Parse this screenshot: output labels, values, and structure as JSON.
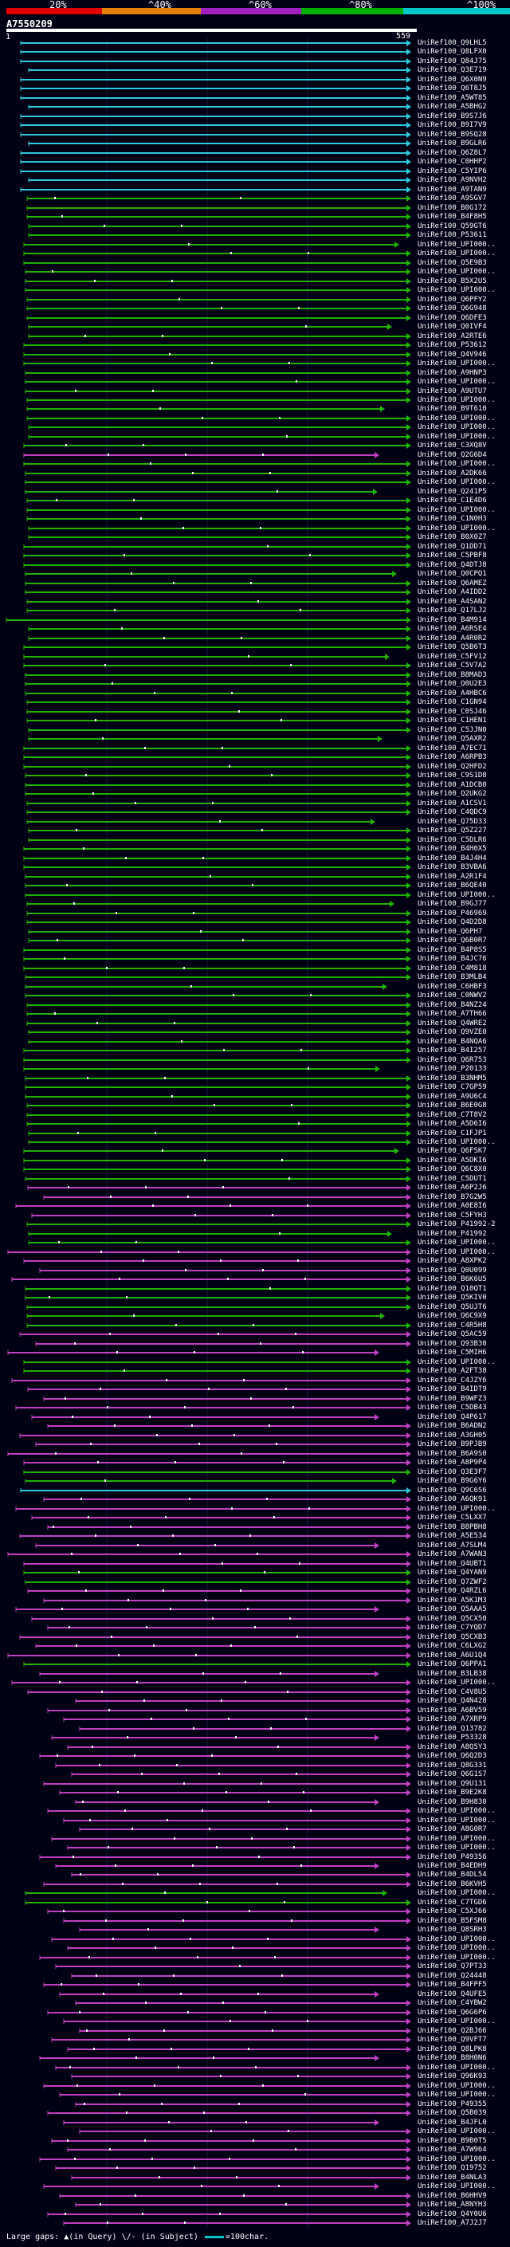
{
  "scale": {
    "labels": [
      "20%",
      "^40%",
      "^60%",
      "^80%",
      "^100%"
    ],
    "colors": [
      "#e00000",
      "#e08000",
      "#a020c0",
      "#00b000",
      "#00c8c8"
    ]
  },
  "query": {
    "id": "A7550209",
    "start": "1",
    "end": "559"
  },
  "colors": {
    "pct100": "#30c8dc",
    "pct80": "#20b000",
    "pct60": "#c040c0",
    "gap": "#ffffff",
    "bg": "#000015"
  },
  "hits": [
    {
      "label": "UniRef100_Q9LHL5",
      "pct": 100
    },
    {
      "label": "UniRef100_Q8LFX0",
      "pct": 100
    },
    {
      "label": "UniRef100_Q84J75",
      "pct": 100
    },
    {
      "label": "UniRef100_Q3E719",
      "pct": 100
    },
    {
      "label": "UniRef100_Q6X0N9",
      "pct": 100
    },
    {
      "label": "UniRef100_Q6T8J5",
      "pct": 100
    },
    {
      "label": "UniRef100_A5WT85",
      "pct": 100
    },
    {
      "label": "UniRef100_A5BHG2",
      "pct": 100
    },
    {
      "label": "UniRef100_B9S7J6",
      "pct": 100
    },
    {
      "label": "UniRef100_B9I7V9",
      "pct": 100
    },
    {
      "label": "UniRef100_B9SQ28",
      "pct": 100
    },
    {
      "label": "UniRef100_B9GLR6",
      "pct": 100
    },
    {
      "label": "UniRef100_Q6Z8L7",
      "pct": 100
    },
    {
      "label": "UniRef100_C0HHP2",
      "pct": 100
    },
    {
      "label": "UniRef100_C5YIP6",
      "pct": 100
    },
    {
      "label": "UniRef100_A9NVH2",
      "pct": 100
    },
    {
      "label": "UniRef100_A9TAN9",
      "pct": 100
    },
    {
      "label": "UniRef100_A9SGV7",
      "pct": 80
    },
    {
      "label": "UniRef100_B0G172",
      "pct": 80
    },
    {
      "label": "UniRef100_B4F8H5",
      "pct": 80
    },
    {
      "label": "UniRef100_Q59GT6",
      "pct": 80
    },
    {
      "label": "UniRef100_P53611",
      "pct": 80
    },
    {
      "label": "UniRef100_UPI000..",
      "pct": 80
    },
    {
      "label": "UniRef100_UPI000..",
      "pct": 80
    },
    {
      "label": "UniRef100_Q5E9B3",
      "pct": 80
    },
    {
      "label": "UniRef100_UPI000..",
      "pct": 80
    },
    {
      "label": "UniRef100_B5X2U5",
      "pct": 80
    },
    {
      "label": "UniRef100_UPI000..",
      "pct": 80
    },
    {
      "label": "UniRef100_Q6PFY2",
      "pct": 80
    },
    {
      "label": "UniRef100_Q6G948",
      "pct": 80
    },
    {
      "label": "UniRef100_Q6DFE3",
      "pct": 80
    },
    {
      "label": "UniRef100_Q0IVF4",
      "pct": 80
    },
    {
      "label": "UniRef100_A2RTE6",
      "pct": 80
    },
    {
      "label": "UniRef100_P53612",
      "pct": 80
    },
    {
      "label": "UniRef100_Q4V946",
      "pct": 80
    },
    {
      "label": "UniRef100_UPI000..",
      "pct": 80
    },
    {
      "label": "UniRef100_A9HNP3",
      "pct": 80
    },
    {
      "label": "UniRef100_UPI000..",
      "pct": 80
    },
    {
      "label": "UniRef100_A9UTU7",
      "pct": 80
    },
    {
      "label": "UniRef100_UPI000..",
      "pct": 80
    },
    {
      "label": "UniRef100_B9T610",
      "pct": 80
    },
    {
      "label": "UniRef100_UPI000..",
      "pct": 80
    },
    {
      "label": "UniRef100_UPI000..",
      "pct": 80
    },
    {
      "label": "UniRef100_UPI000..",
      "pct": 80
    },
    {
      "label": "UniRef100_C3XQ8V",
      "pct": 80
    },
    {
      "label": "UniRef100_Q2G6D4",
      "pct": 60
    },
    {
      "label": "UniRef100_UPI000..",
      "pct": 80
    },
    {
      "label": "UniRef100_A2DK66",
      "pct": 80
    },
    {
      "label": "UniRef100_UPI000..",
      "pct": 80
    },
    {
      "label": "UniRef100_Q241P5",
      "pct": 80
    },
    {
      "label": "UniRef100_C1E4D6",
      "pct": 80
    },
    {
      "label": "UniRef100_UPI000..",
      "pct": 80
    },
    {
      "label": "UniRef100_C1N0H3",
      "pct": 80
    },
    {
      "label": "UniRef100_UPI000..",
      "pct": 80
    },
    {
      "label": "UniRef100_B0X0Z7",
      "pct": 80
    },
    {
      "label": "UniRef100_Q1DD71",
      "pct": 80
    },
    {
      "label": "UniRef100_C5PBF8",
      "pct": 80
    },
    {
      "label": "UniRef100_Q4DTJ8",
      "pct": 80
    },
    {
      "label": "UniRef100_Q0CPQ1",
      "pct": 80
    },
    {
      "label": "UniRef100_Q6AMEZ",
      "pct": 80
    },
    {
      "label": "UniRef100_A4IDD2",
      "pct": 80
    },
    {
      "label": "UniRef100_A4SAN2",
      "pct": 80
    },
    {
      "label": "UniRef100_Q17LJ2",
      "pct": 80
    },
    {
      "label": "UniRef100_B4M914",
      "pct": 80
    },
    {
      "label": "UniRef100_A6RSE4",
      "pct": 80
    },
    {
      "label": "UniRef100_A4R0R2",
      "pct": 80
    },
    {
      "label": "UniRef100_Q5B6T3",
      "pct": 80
    },
    {
      "label": "UniRef100_C5FV12",
      "pct": 80
    },
    {
      "label": "UniRef100_C5V7A2",
      "pct": 80
    },
    {
      "label": "UniRef100_B8MAD3",
      "pct": 80
    },
    {
      "label": "UniRef100_Q0U2E3",
      "pct": 80
    },
    {
      "label": "UniRef100_A4HBC6",
      "pct": 80
    },
    {
      "label": "UniRef100_C1GN94",
      "pct": 80
    },
    {
      "label": "UniRef100_C0SJ46",
      "pct": 80
    },
    {
      "label": "UniRef100_C1HEN1",
      "pct": 80
    },
    {
      "label": "UniRef100_C5JJN0",
      "pct": 80
    },
    {
      "label": "UniRef100_Q5AXR2",
      "pct": 80
    },
    {
      "label": "UniRef100_A7EC71",
      "pct": 80
    },
    {
      "label": "UniRef100_A6RPB3",
      "pct": 80
    },
    {
      "label": "UniRef100_Q2HFD2",
      "pct": 80
    },
    {
      "label": "UniRef100_C9S1D8",
      "pct": 80
    },
    {
      "label": "UniRef100_A1DCB0",
      "pct": 80
    },
    {
      "label": "UniRef100_Q2UKG2",
      "pct": 80
    },
    {
      "label": "UniRef100_A1CSV1",
      "pct": 80
    },
    {
      "label": "UniRef100_C4QDC9",
      "pct": 80
    },
    {
      "label": "UniRef100_Q75D33",
      "pct": 80
    },
    {
      "label": "UniRef100_Q5Z227",
      "pct": 80
    },
    {
      "label": "UniRef100_C5DLR6",
      "pct": 80
    },
    {
      "label": "UniRef100_B4H0X5",
      "pct": 80
    },
    {
      "label": "UniRef100_B4J4H4",
      "pct": 80
    },
    {
      "label": "UniRef100_B3VBA6",
      "pct": 80
    },
    {
      "label": "UniRef100_A2R1F4",
      "pct": 80
    },
    {
      "label": "UniRef100_B6QE40",
      "pct": 80
    },
    {
      "label": "UniRef100_UPI000..",
      "pct": 80
    },
    {
      "label": "UniRef100_B9GJ77",
      "pct": 80
    },
    {
      "label": "UniRef100_P46969",
      "pct": 80
    },
    {
      "label": "UniRef100_Q4D2D8",
      "pct": 80
    },
    {
      "label": "UniRef100_Q6PH7",
      "pct": 80
    },
    {
      "label": "UniRef100_Q6B0R7",
      "pct": 80
    },
    {
      "label": "UniRef100_B4P8S5",
      "pct": 80
    },
    {
      "label": "UniRef100_B4JC76",
      "pct": 80
    },
    {
      "label": "UniRef100_C4M818",
      "pct": 80
    },
    {
      "label": "UniRef100_B3MLB4",
      "pct": 80
    },
    {
      "label": "UniRef100_C6HBF3",
      "pct": 80
    },
    {
      "label": "UniRef100_C0NWV2",
      "pct": 80
    },
    {
      "label": "UniRef100_B4NZ24",
      "pct": 80
    },
    {
      "label": "UniRef100_A7TH66",
      "pct": 80
    },
    {
      "label": "UniRef100_Q4WRE2",
      "pct": 80
    },
    {
      "label": "UniRef100_Q9VZE0",
      "pct": 80
    },
    {
      "label": "UniRef100_B4NQA6",
      "pct": 80
    },
    {
      "label": "UniRef100_B4I257",
      "pct": 80
    },
    {
      "label": "UniRef100_Q6R753",
      "pct": 80
    },
    {
      "label": "UniRef100_P20133",
      "pct": 80
    },
    {
      "label": "UniRef100_B3NHM5",
      "pct": 80
    },
    {
      "label": "UniRef100_C7GP59",
      "pct": 80
    },
    {
      "label": "UniRef100_A9U6C4",
      "pct": 80
    },
    {
      "label": "UniRef100_B6E0G8",
      "pct": 80
    },
    {
      "label": "UniRef100_C7T8V2",
      "pct": 80
    },
    {
      "label": "UniRef100_A5D6I6",
      "pct": 80
    },
    {
      "label": "UniRef100_C1FJP1",
      "pct": 80
    },
    {
      "label": "UniRef100_UPI000..",
      "pct": 80
    },
    {
      "label": "UniRef100_Q6FSK7",
      "pct": 80
    },
    {
      "label": "UniRef100_A5DKI6",
      "pct": 80
    },
    {
      "label": "UniRef100_Q6C8X0",
      "pct": 80
    },
    {
      "label": "UniRef100_C5DUT1",
      "pct": 80
    },
    {
      "label": "UniRef100_A6P2J6",
      "pct": 60
    },
    {
      "label": "UniRef100_B7G2W5",
      "pct": 60
    },
    {
      "label": "UniRef100_A0E8I6",
      "pct": 60
    },
    {
      "label": "UniRef100_C5FYH3",
      "pct": 60
    },
    {
      "label": "UniRef100_P41992-2",
      "pct": 80
    },
    {
      "label": "UniRef100_P41992",
      "pct": 80
    },
    {
      "label": "UniRef100_UPI000..",
      "pct": 80
    },
    {
      "label": "UniRef100_UPI000..",
      "pct": 60
    },
    {
      "label": "UniRef100_A8XPK2",
      "pct": 60
    },
    {
      "label": "UniRef100_Q0U099",
      "pct": 60
    },
    {
      "label": "UniRef100_B6K6U5",
      "pct": 60
    },
    {
      "label": "UniRef100_Q10QT1",
      "pct": 80
    },
    {
      "label": "UniRef100_Q5KIV0",
      "pct": 80
    },
    {
      "label": "UniRef100_Q5UJT6",
      "pct": 80
    },
    {
      "label": "UniRef100_Q6C9X9",
      "pct": 80
    },
    {
      "label": "UniRef100_C4R5H8",
      "pct": 80
    },
    {
      "label": "UniRef100_Q5AC59",
      "pct": 60
    },
    {
      "label": "UniRef100_Q93B30",
      "pct": 60
    },
    {
      "label": "UniRef100_C5MIH6",
      "pct": 60
    },
    {
      "label": "UniRef100_UPI000..",
      "pct": 80
    },
    {
      "label": "UniRef100_A2FT38",
      "pct": 80
    },
    {
      "label": "UniRef100_C4JZY6",
      "pct": 60
    },
    {
      "label": "UniRef100_B4IDT9",
      "pct": 60
    },
    {
      "label": "UniRef100_B9WFZ3",
      "pct": 60
    },
    {
      "label": "UniRef100_C5DB43",
      "pct": 60
    },
    {
      "label": "UniRef100_Q4P617",
      "pct": 60
    },
    {
      "label": "UniRef100_B6ADN2",
      "pct": 60
    },
    {
      "label": "UniRef100_A3GH05",
      "pct": 60
    },
    {
      "label": "UniRef100_B9PJB9",
      "pct": 60
    },
    {
      "label": "UniRef100_B6A9S0",
      "pct": 60
    },
    {
      "label": "UniRef100_A8P9P4",
      "pct": 60
    },
    {
      "label": "UniRef100_Q3E3F7",
      "pct": 80
    },
    {
      "label": "UniRef100_B9G6Y6",
      "pct": 80
    },
    {
      "label": "UniRef100_Q9C6S6",
      "pct": 100
    },
    {
      "label": "UniRef100_A6QK91",
      "pct": 60
    },
    {
      "label": "UniRef100_UPI000..",
      "pct": 60
    },
    {
      "label": "UniRef100_C5LXX7",
      "pct": 60
    },
    {
      "label": "UniRef100_B8PBH8",
      "pct": 60
    },
    {
      "label": "UniRef100_A5E534",
      "pct": 60
    },
    {
      "label": "UniRef100_A7SLM4",
      "pct": 60
    },
    {
      "label": "UniRef100_A7WAN3",
      "pct": 60
    },
    {
      "label": "UniRef100_Q4UBT1",
      "pct": 60
    },
    {
      "label": "UniRef100_Q4YAN9",
      "pct": 80
    },
    {
      "label": "UniRef100_Q7ZWF2",
      "pct": 80
    },
    {
      "label": "UniRef100_Q4RZL6",
      "pct": 60
    },
    {
      "label": "UniRef100_A5K1M3",
      "pct": 60
    },
    {
      "label": "UniRef100_Q5AAA5",
      "pct": 60
    },
    {
      "label": "UniRef100_Q5CX50",
      "pct": 60
    },
    {
      "label": "UniRef100_C7YQD7",
      "pct": 60
    },
    {
      "label": "UniRef100_Q5CXB3",
      "pct": 60
    },
    {
      "label": "UniRef100_C6LXG2",
      "pct": 60
    },
    {
      "label": "UniRef100_A6U1Q4",
      "pct": 60
    },
    {
      "label": "UniRef100_Q6PPA1",
      "pct": 80
    },
    {
      "label": "UniRef100_B3LB38",
      "pct": 60
    },
    {
      "label": "UniRef100_UPI000..",
      "pct": 60
    },
    {
      "label": "UniRef100_C4V8U5",
      "pct": 60
    },
    {
      "label": "UniRef100_Q4N428",
      "pct": 60
    },
    {
      "label": "UniRef100_A6BV59",
      "pct": 60
    },
    {
      "label": "UniRef100_A7XRP9",
      "pct": 60
    },
    {
      "label": "UniRef100_Q13782",
      "pct": 60
    },
    {
      "label": "UniRef100_P53328",
      "pct": 60
    },
    {
      "label": "UniRef100_A8Q5Y3",
      "pct": 60
    },
    {
      "label": "UniRef100_Q6Q2D3",
      "pct": 60
    },
    {
      "label": "UniRef100_Q8G331",
      "pct": 60
    },
    {
      "label": "UniRef100_Q6G1S7",
      "pct": 60
    },
    {
      "label": "UniRef100_Q9U131",
      "pct": 60
    },
    {
      "label": "UniRef100_B9E2K8",
      "pct": 60
    },
    {
      "label": "UniRef100_B9H830",
      "pct": 60
    },
    {
      "label": "UniRef100_UPI000..",
      "pct": 60
    },
    {
      "label": "UniRef100_UPI000..",
      "pct": 60
    },
    {
      "label": "UniRef100_A8G0R7",
      "pct": 60
    },
    {
      "label": "UniRef100_UPI000..",
      "pct": 60
    },
    {
      "label": "UniRef100_UPI000..",
      "pct": 60
    },
    {
      "label": "UniRef100_P49356",
      "pct": 60
    },
    {
      "label": "UniRef100_B4EDH9",
      "pct": 60
    },
    {
      "label": "UniRef100_B4DL54",
      "pct": 60
    },
    {
      "label": "UniRef100_B6KVH5",
      "pct": 60
    },
    {
      "label": "UniRef100_UPI000..",
      "pct": 80
    },
    {
      "label": "UniRef100_C7TGD6",
      "pct": 80
    },
    {
      "label": "UniRef100_C5XJ66",
      "pct": 60
    },
    {
      "label": "UniRef100_B5FSM8",
      "pct": 60
    },
    {
      "label": "UniRef100_Q8SRH3",
      "pct": 60
    },
    {
      "label": "UniRef100_UPI000..",
      "pct": 60
    },
    {
      "label": "UniRef100_UPI000..",
      "pct": 60
    },
    {
      "label": "UniRef100_UPI000..",
      "pct": 60
    },
    {
      "label": "UniRef100_Q7PT33",
      "pct": 60
    },
    {
      "label": "UniRef100_Q24448",
      "pct": 60
    },
    {
      "label": "UniRef100_B4FPF5",
      "pct": 60
    },
    {
      "label": "UniRef100_Q4UFE5",
      "pct": 60
    },
    {
      "label": "UniRef100_C4YBW2",
      "pct": 60
    },
    {
      "label": "UniRef100_Q6G6P6",
      "pct": 60
    },
    {
      "label": "UniRef100_UPI000..",
      "pct": 60
    },
    {
      "label": "UniRef100_Q2BJ66",
      "pct": 60
    },
    {
      "label": "UniRef100_Q9VFT7",
      "pct": 60
    },
    {
      "label": "UniRef100_Q8LPK8",
      "pct": 60
    },
    {
      "label": "UniRef100_B8H0N6",
      "pct": 60
    },
    {
      "label": "UniRef100_UPI000..",
      "pct": 60
    },
    {
      "label": "UniRef100_Q96K93",
      "pct": 60
    },
    {
      "label": "UniRef100_UPI000..",
      "pct": 60
    },
    {
      "label": "UniRef100_UPI000..",
      "pct": 60
    },
    {
      "label": "UniRef100_P49355",
      "pct": 60
    },
    {
      "label": "UniRef100_Q5B039",
      "pct": 60
    },
    {
      "label": "UniRef100_B4JFL0",
      "pct": 60
    },
    {
      "label": "UniRef100_UPI000..",
      "pct": 60
    },
    {
      "label": "UniRef100_B9B0T5",
      "pct": 60
    },
    {
      "label": "UniRef100_A7W964",
      "pct": 60
    },
    {
      "label": "UniRef100_UPI000..",
      "pct": 60
    },
    {
      "label": "UniRef100_Q19752",
      "pct": 60
    },
    {
      "label": "UniRef100_B4NLA3",
      "pct": 60
    },
    {
      "label": "UniRef100_UPI000..",
      "pct": 60
    },
    {
      "label": "UniRef100_B6HHV9",
      "pct": 60
    },
    {
      "label": "UniRef100_A8NYH3",
      "pct": 60
    },
    {
      "label": "UniRef100_Q4Y0U6",
      "pct": 60
    },
    {
      "label": "UniRef100_A7J2J7",
      "pct": 60
    }
  ],
  "legend": {
    "large_gaps": "Large gaps:",
    "in_query": "(in Query)",
    "in_subject": "(in Subject)",
    "scale_note": "=100char."
  }
}
